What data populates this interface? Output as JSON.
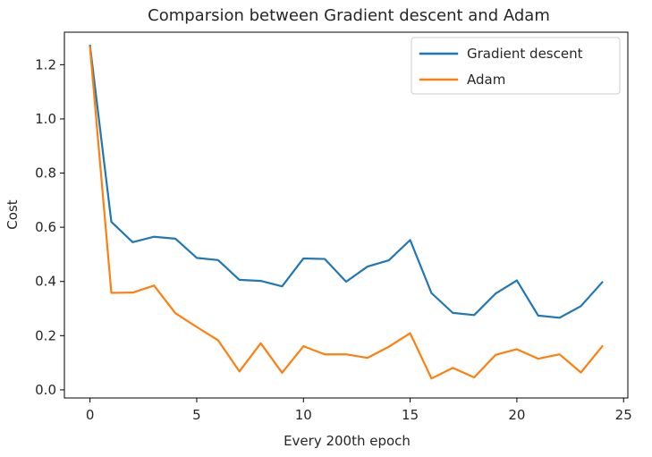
{
  "chart_data": {
    "type": "line",
    "title": "Comparsion between Gradient descent and Adam",
    "xlabel": "Every 200th epoch",
    "ylabel": "Cost",
    "xlim": [
      -1.2,
      25.2
    ],
    "ylim": [
      -0.03,
      1.32
    ],
    "xticks": [
      0,
      5,
      10,
      15,
      20,
      25
    ],
    "xtick_labels": [
      "0",
      "5",
      "10",
      "15",
      "20",
      "25"
    ],
    "yticks": [
      0.0,
      0.2,
      0.4,
      0.6,
      0.8,
      1.0,
      1.2
    ],
    "ytick_labels": [
      "0.0",
      "0.2",
      "0.4",
      "0.6",
      "0.8",
      "1.0",
      "1.2"
    ],
    "grid": false,
    "legend_position": "top-right",
    "x": [
      0,
      1,
      2,
      3,
      4,
      5,
      6,
      7,
      8,
      9,
      10,
      11,
      12,
      13,
      14,
      15,
      16,
      17,
      18,
      19,
      20,
      21,
      22,
      23,
      24
    ],
    "series": [
      {
        "name": "Gradient descent",
        "color": "#1f77b4",
        "values": [
          1.27,
          0.62,
          0.545,
          0.565,
          0.558,
          0.487,
          0.479,
          0.406,
          0.402,
          0.382,
          0.485,
          0.483,
          0.399,
          0.455,
          0.478,
          0.553,
          0.357,
          0.284,
          0.276,
          0.355,
          0.404,
          0.274,
          0.266,
          0.309,
          0.397
        ]
      },
      {
        "name": "Adam",
        "color": "#ff7f0e",
        "values": [
          1.265,
          0.358,
          0.359,
          0.385,
          0.283,
          0.232,
          0.183,
          0.068,
          0.172,
          0.063,
          0.161,
          0.131,
          0.131,
          0.118,
          0.159,
          0.209,
          0.042,
          0.081,
          0.046,
          0.129,
          0.15,
          0.115,
          0.131,
          0.064,
          0.161
        ]
      }
    ]
  }
}
